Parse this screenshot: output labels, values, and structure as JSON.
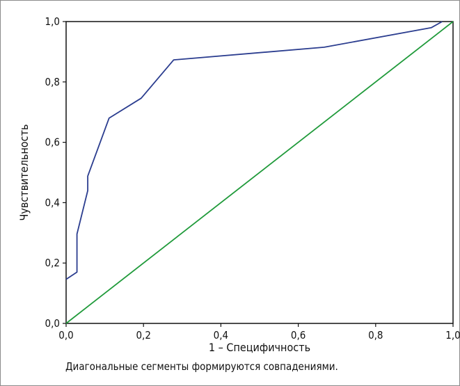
{
  "chart_data": {
    "type": "line",
    "title": "",
    "xlabel": "1 – Специфичность",
    "ylabel": "Чувствительность",
    "xlim": [
      0,
      1
    ],
    "ylim": [
      0,
      1
    ],
    "xticks": [
      "0,0",
      "0,2",
      "0,4",
      "0,6",
      "0,8",
      "1,0"
    ],
    "yticks": [
      "0,0",
      "0,2",
      "0,4",
      "0,6",
      "0,8",
      "1,0"
    ],
    "grid": false,
    "legend": "none",
    "note": "Диагональные сегменты формируются совпадениями.",
    "series": [
      {
        "color": "#2b3d8f",
        "x": [
          0.0,
          0.028,
          0.028,
          0.056,
          0.056,
          0.111,
          0.194,
          0.278,
          0.667,
          0.944,
          0.972
        ],
        "y": [
          0.146,
          0.17,
          0.296,
          0.44,
          0.488,
          0.68,
          0.746,
          0.873,
          0.915,
          0.98,
          1.0
        ]
      },
      {
        "color": "#1f9a3a",
        "x": [
          0,
          1
        ],
        "y": [
          0,
          1
        ]
      }
    ]
  }
}
